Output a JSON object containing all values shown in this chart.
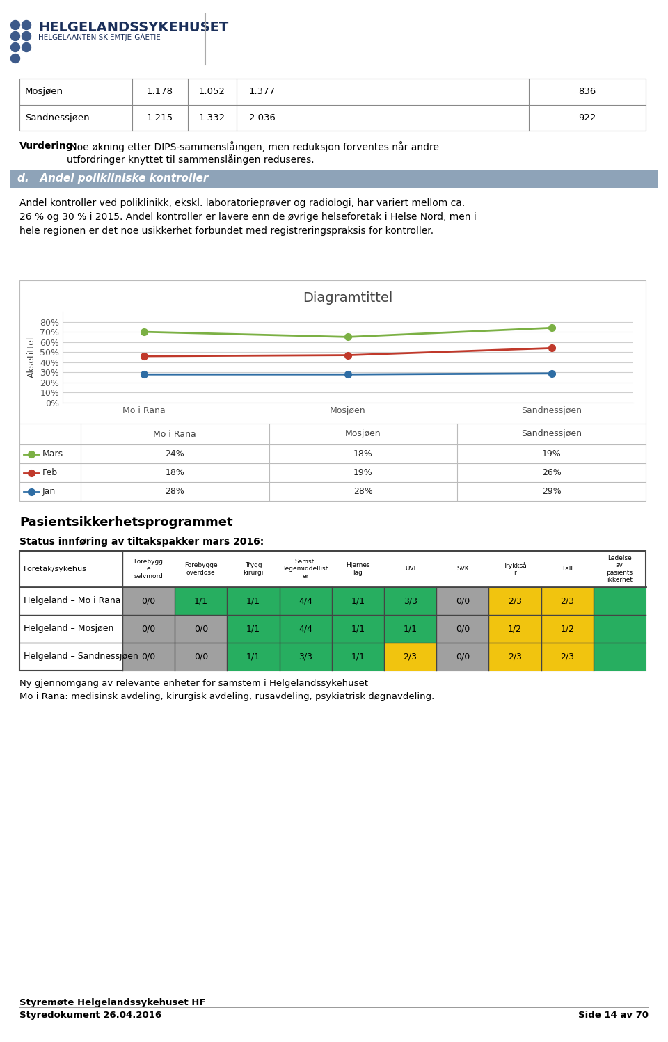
{
  "page_bg": "#ffffff",
  "title_bar_color": "#8ea3b8",
  "section_title": "d.   Andel polikliniske kontroller",
  "body_text1": "Andel kontroller ved poliklinikk, ekskl. laboratorieprøver og radiologi, har variert mellom ca.\n26 % og 30 % i 2015. Andel kontroller er lavere enn de øvrige helseforetak i Helse Nord, men i\nhele regionen er det noe usikkerhet forbundet med registreringspraksis for kontroller.",
  "vurdering_bold": "Vurdering:",
  "vurdering_text": " Noe økning etter DIPS-sammenslåingen, men reduksjon forventes når andre\nutfordringer knyttet til sammenslåingen reduseres.",
  "top_table": {
    "rows": [
      {
        "label": "Mosjøen",
        "v1": "1.178",
        "v2": "1.052",
        "v3": "1.377",
        "v7": "836"
      },
      {
        "label": "Sandnessjøen",
        "v1": "1.215",
        "v2": "1.332",
        "v3": "2.036",
        "v7": "922"
      }
    ]
  },
  "chart_title": "Diagramtittel",
  "chart_ylabel": "Aksetittel",
  "chart_categories": [
    "Mo i Rana",
    "Mosjøen",
    "Sandnessjøen"
  ],
  "chart_series": [
    {
      "label": "Mars",
      "color": "#7bb044",
      "values": [
        0.7,
        0.65,
        0.74
      ]
    },
    {
      "label": "Feb",
      "color": "#c0392b",
      "values": [
        0.46,
        0.47,
        0.54
      ]
    },
    {
      "label": "Jan",
      "color": "#2e6da4",
      "values": [
        0.28,
        0.28,
        0.29
      ]
    }
  ],
  "chart_table_rows": [
    {
      "label": "Mars",
      "color": "#7bb044",
      "values": [
        "24%",
        "18%",
        "19%"
      ]
    },
    {
      "label": "Feb",
      "color": "#c0392b",
      "values": [
        "18%",
        "19%",
        "26%"
      ]
    },
    {
      "label": "Jan",
      "color": "#2e6da4",
      "values": [
        "28%",
        "28%",
        "29%"
      ]
    }
  ],
  "pasient_title": "Pasientsikkerhetsprogrammet",
  "pasient_subtitle": "Status innføring av tiltakspakker mars 2016:",
  "pasient_col_headers": [
    "Foretak/sykehus",
    "Forebygg\ne\nselvmord",
    "Forebygge\noverdose",
    "Trygg\nkirurgi",
    "Samst.\nlegemiddellist\ner",
    "Hjernes\nlag",
    "UVI",
    "SVK",
    "Trykkså\nr",
    "Fall",
    "Ledelse\nav\npasients\nikkerhet"
  ],
  "pasient_rows": [
    {
      "label": "Helgeland – Mo i Rana",
      "values": [
        "0/0",
        "1/1",
        "1/1",
        "4/4",
        "1/1",
        "3/3",
        "0/0",
        "2/3",
        "2/3",
        ""
      ],
      "colors": [
        "#a0a0a0",
        "#27ae60",
        "#27ae60",
        "#27ae60",
        "#27ae60",
        "#27ae60",
        "#a0a0a0",
        "#f1c40f",
        "#f1c40f",
        "#27ae60"
      ]
    },
    {
      "label": "Helgeland – Mosjøen",
      "values": [
        "0/0",
        "0/0",
        "1/1",
        "4/4",
        "1/1",
        "1/1",
        "0/0",
        "1/2",
        "1/2",
        ""
      ],
      "colors": [
        "#a0a0a0",
        "#a0a0a0",
        "#27ae60",
        "#27ae60",
        "#27ae60",
        "#27ae60",
        "#a0a0a0",
        "#f1c40f",
        "#f1c40f",
        "#27ae60"
      ]
    },
    {
      "label": "Helgeland – Sandnessjøen",
      "values": [
        "0/0",
        "0/0",
        "1/1",
        "3/3",
        "1/1",
        "2/3",
        "0/0",
        "2/3",
        "2/3",
        ""
      ],
      "colors": [
        "#a0a0a0",
        "#a0a0a0",
        "#27ae60",
        "#27ae60",
        "#27ae60",
        "#f1c40f",
        "#a0a0a0",
        "#f1c40f",
        "#f1c40f",
        "#27ae60"
      ]
    }
  ],
  "footer_left": "Styremøte Helgelandssykehuset HF\nStyredokument 26.04.2016",
  "footer_right": "Side 14 av 70",
  "note_text": "Ny gjennomgang av relevante enheter for samstem i Helgelandssykehuset\nMo i Rana: medisinsk avdeling, kirurgisk avdeling, rusavdeling, psykiatrisk døgnavdeling."
}
